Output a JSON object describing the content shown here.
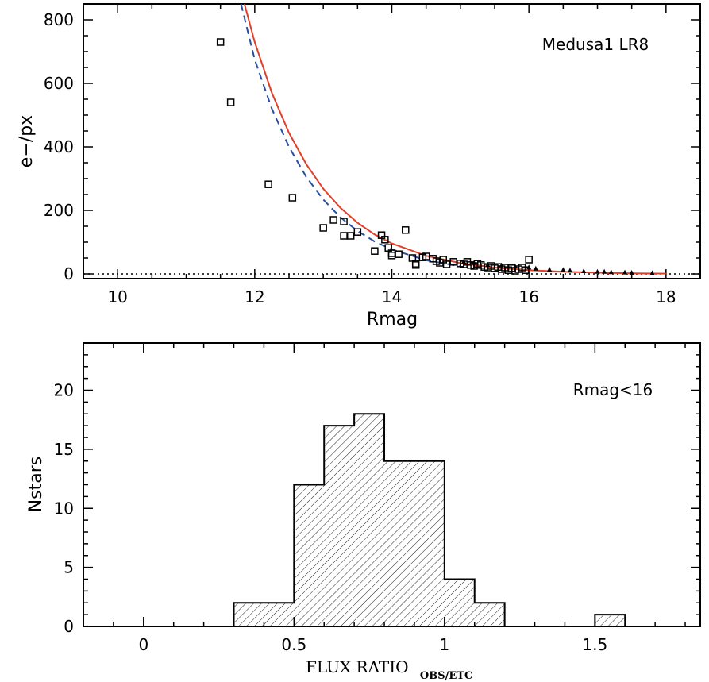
{
  "chart_data": [
    {
      "type": "scatter",
      "annotation": "Medusa1 LR8",
      "xlabel": "Rmag",
      "ylabel": "e−/px",
      "xlim": [
        9.5,
        18.5
      ],
      "ylim": [
        -15,
        850
      ],
      "x_ticks": [
        10,
        12,
        14,
        16,
        18
      ],
      "y_ticks": [
        0,
        200,
        400,
        600,
        800
      ],
      "reference_line": {
        "y": 0,
        "style": "dotted"
      },
      "series": [
        {
          "marker": "open-square",
          "points": [
            [
              11.5,
              730
            ],
            [
              11.65,
              540
            ],
            [
              12.2,
              282
            ],
            [
              12.55,
              240
            ],
            [
              13.0,
              145
            ],
            [
              13.15,
              170
            ],
            [
              13.3,
              165
            ],
            [
              13.3,
              120
            ],
            [
              13.4,
              120
            ],
            [
              13.5,
              132
            ],
            [
              13.75,
              72
            ],
            [
              13.85,
              122
            ],
            [
              13.9,
              108
            ],
            [
              13.95,
              82
            ],
            [
              14.0,
              65
            ],
            [
              14.0,
              58
            ],
            [
              14.1,
              62
            ],
            [
              14.2,
              138
            ],
            [
              14.3,
              50
            ],
            [
              14.35,
              32
            ],
            [
              14.35,
              28
            ],
            [
              14.45,
              52
            ],
            [
              14.5,
              55
            ],
            [
              14.6,
              48
            ],
            [
              14.65,
              40
            ],
            [
              14.7,
              35
            ],
            [
              14.75,
              45
            ],
            [
              14.8,
              30
            ],
            [
              14.9,
              38
            ],
            [
              15.0,
              33
            ],
            [
              15.05,
              30
            ],
            [
              15.1,
              38
            ],
            [
              15.15,
              28
            ],
            [
              15.2,
              25
            ],
            [
              15.25,
              32
            ],
            [
              15.3,
              28
            ],
            [
              15.35,
              22
            ],
            [
              15.4,
              20
            ],
            [
              15.45,
              25
            ],
            [
              15.5,
              18
            ],
            [
              15.55,
              22
            ],
            [
              15.6,
              15
            ],
            [
              15.65,
              20
            ],
            [
              15.7,
              12
            ],
            [
              15.75,
              18
            ],
            [
              15.8,
              10
            ],
            [
              15.85,
              15
            ],
            [
              15.9,
              20
            ],
            [
              15.95,
              12
            ],
            [
              16.0,
              45
            ]
          ]
        },
        {
          "marker": "filled-triangle",
          "points": [
            [
              15.05,
              40
            ],
            [
              15.2,
              36
            ],
            [
              15.4,
              30
            ],
            [
              15.6,
              28
            ],
            [
              15.8,
              25
            ],
            [
              16.0,
              22
            ],
            [
              16.1,
              18
            ],
            [
              16.3,
              15
            ],
            [
              16.5,
              14
            ],
            [
              16.6,
              12
            ],
            [
              16.8,
              10
            ],
            [
              17.0,
              8
            ],
            [
              17.1,
              8
            ],
            [
              17.2,
              7
            ],
            [
              17.4,
              6
            ],
            [
              17.5,
              5
            ],
            [
              17.8,
              4
            ]
          ]
        }
      ],
      "curves": [
        {
          "style": "solid",
          "color": "#e0402a",
          "x": [
            11.85,
            12.0,
            12.25,
            12.5,
            12.75,
            13.0,
            13.25,
            13.5,
            13.75,
            14.0,
            14.5,
            15.0,
            15.5,
            16.0,
            16.5,
            17.0,
            17.5,
            18.0
          ],
          "y": [
            850,
            730,
            570,
            444,
            346,
            268,
            208,
            161,
            124,
            96,
            57,
            34,
            20,
            12,
            7,
            4,
            2,
            1
          ]
        },
        {
          "style": "dashed",
          "color": "#2a4ea0",
          "x": [
            11.8,
            12.0,
            12.25,
            12.5,
            12.75,
            13.0,
            13.25,
            13.5,
            13.75,
            14.0,
            14.5,
            15.0
          ],
          "y": [
            850,
            675,
            520,
            400,
            306,
            234,
            178,
            135,
            102,
            77,
            43,
            24
          ]
        }
      ]
    },
    {
      "type": "bar",
      "annotation": "Rmag<16",
      "xlabel": "FLUX RATIO",
      "xlabel_subscript": "OBS/ETC",
      "ylabel": "Nstars",
      "xlim": [
        -0.2,
        1.85
      ],
      "ylim": [
        0,
        24
      ],
      "x_ticks": [
        0,
        0.5,
        1,
        1.5
      ],
      "x_tick_labels": [
        "0",
        "0.5",
        "1",
        "1.5"
      ],
      "y_ticks": [
        0,
        5,
        10,
        15,
        20
      ],
      "fill": "diagonal-hatch",
      "bins": [
        {
          "start": 0.3,
          "end": 0.5,
          "count": 2
        },
        {
          "start": 0.5,
          "end": 0.6,
          "count": 12
        },
        {
          "start": 0.6,
          "end": 0.7,
          "count": 17
        },
        {
          "start": 0.7,
          "end": 0.8,
          "count": 18
        },
        {
          "start": 0.8,
          "end": 1.0,
          "count": 14
        },
        {
          "start": 1.0,
          "end": 1.1,
          "count": 4
        },
        {
          "start": 1.1,
          "end": 1.2,
          "count": 2
        },
        {
          "start": 1.5,
          "end": 1.6,
          "count": 1
        }
      ]
    }
  ]
}
